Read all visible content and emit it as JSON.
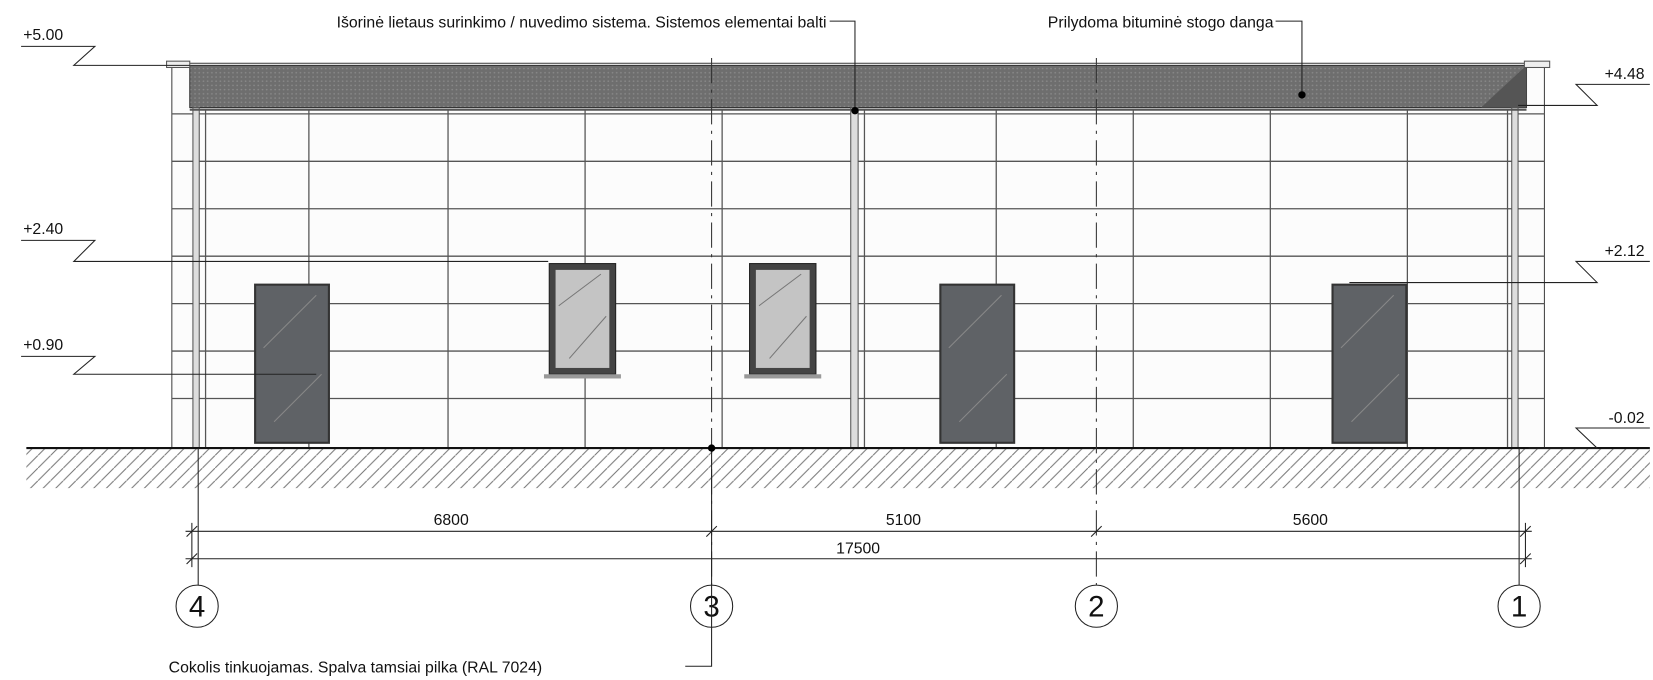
{
  "annotations": {
    "gutter": "Išorinė lietaus surinkimo / nuvedimo sistema. Sistemos elementai balti",
    "roof": "Prilydoma bituminė stogo danga",
    "plinth": "Cokolis tinkuojamas. Spalva tamsiai pilka (RAL 7024)"
  },
  "levels_left": [
    "+5.00",
    "+2.40",
    "+0.90"
  ],
  "levels_right": [
    "+4.48",
    "+2.12",
    "-0.02"
  ],
  "dimensions": {
    "segments": [
      "6800",
      "5100",
      "5600"
    ],
    "total": "17500"
  },
  "axes": [
    "4",
    "3",
    "2",
    "1"
  ]
}
